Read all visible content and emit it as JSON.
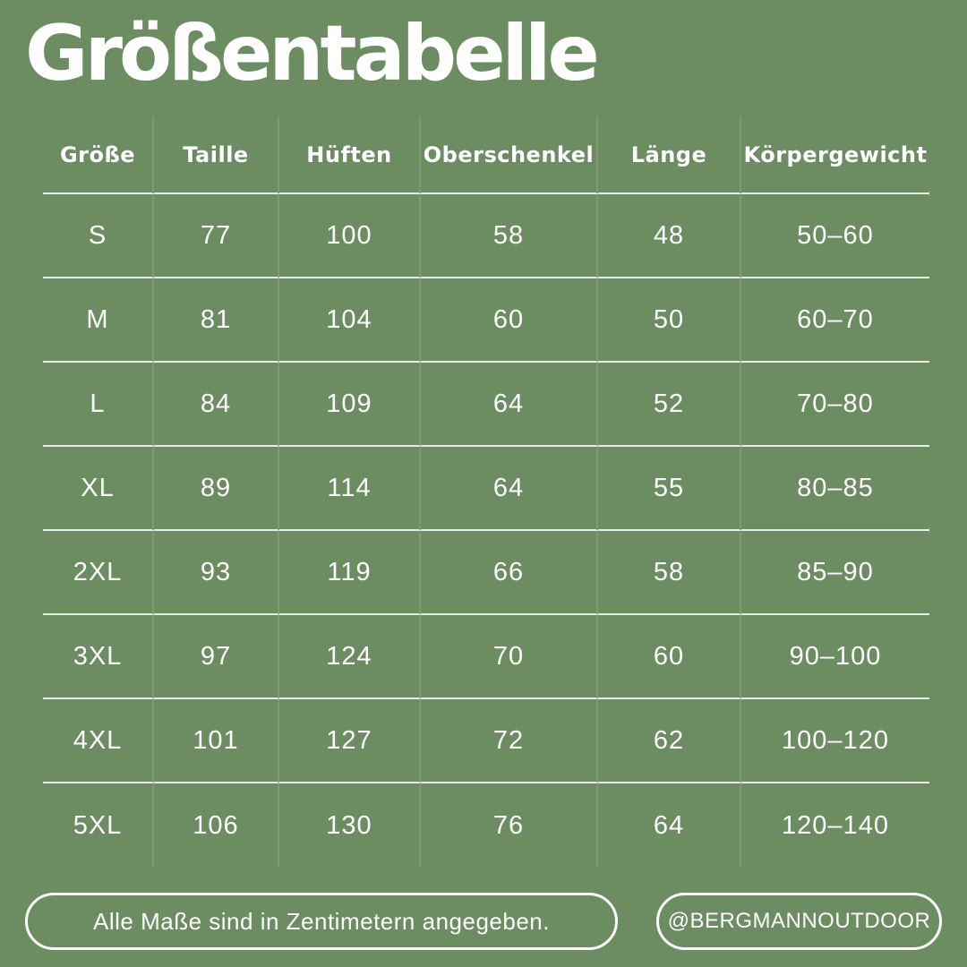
{
  "canvas": {
    "background_color": "#6c8c62",
    "text_color": "#ffffff",
    "separator_color": "rgba(255,255,255,0.85)"
  },
  "title": "Größentabelle",
  "chart_data": {
    "type": "table",
    "title": "Größentabelle",
    "columns": [
      "Größe",
      "Taille",
      "Hüften",
      "Oberschenkel",
      "Länge",
      "Körpergewicht"
    ],
    "rows": [
      [
        "S",
        "77",
        "100",
        "58",
        "48",
        "50–60"
      ],
      [
        "M",
        "81",
        "104",
        "60",
        "50",
        "60–70"
      ],
      [
        "L",
        "84",
        "109",
        "64",
        "52",
        "70–80"
      ],
      [
        "XL",
        "89",
        "114",
        "64",
        "55",
        "80–85"
      ],
      [
        "2XL",
        "93",
        "119",
        "66",
        "58",
        "85–90"
      ],
      [
        "3XL",
        "97",
        "124",
        "70",
        "60",
        "90–100"
      ],
      [
        "4XL",
        "101",
        "127",
        "72",
        "62",
        "100–120"
      ],
      [
        "5XL",
        "106",
        "130",
        "76",
        "64",
        "120–140"
      ]
    ]
  },
  "footer": {
    "note": "Alle Maße sind in Zentimetern angegeben.",
    "handle": "@BERGMANNOUTDOOR"
  }
}
